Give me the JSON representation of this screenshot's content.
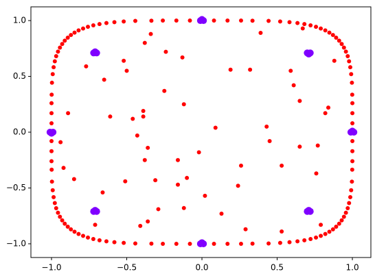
{
  "chart_data": {
    "type": "scatter",
    "xlim": [
      -1.137,
      1.123
    ],
    "ylim": [
      -1.123,
      1.123
    ],
    "xticks": [
      {
        "value": -1,
        "label": "−1.0"
      },
      {
        "value": -0.5,
        "label": "−0.5"
      },
      {
        "value": 0,
        "label": "0.0"
      },
      0.5,
      {
        "value": 1,
        "label": "1.0"
      }
    ],
    "yticks": [
      {
        "value": -1,
        "label": "−1.0"
      },
      {
        "value": -0.5,
        "label": "−0.5"
      },
      {
        "value": 0,
        "label": "0.0"
      },
      0.5,
      {
        "value": 1,
        "label": "1.0"
      }
    ],
    "grid": false,
    "series": [
      {
        "color": "#ff0000",
        "x": [
          1,
          1,
          1,
          1,
          0.999,
          0.997,
          0.992,
          0.986,
          0.978,
          0.969,
          0.957,
          0.944,
          0.929,
          0.912,
          0.892,
          0.871,
          0.847,
          0.82,
          0.79,
          0.758,
          0.722,
          0.681,
          0.635,
          0.582,
          0.52,
          0.443,
          0.336,
          0.26,
          0.17,
          0.08,
          0,
          -0.08,
          -0.17,
          -0.26,
          -0.336,
          -0.443,
          -0.52,
          -0.582,
          -0.635,
          -0.681,
          -0.722,
          -0.758,
          -0.79,
          -0.82,
          -0.847,
          -0.871,
          -0.892,
          -0.912,
          -0.929,
          -0.944,
          -0.957,
          -0.969,
          -0.978,
          -0.986,
          -0.992,
          -0.997,
          -0.999,
          -1,
          -1,
          -1,
          -1,
          -1,
          -1,
          -1,
          -0.999,
          -0.997,
          -0.992,
          -0.986,
          -0.978,
          -0.969,
          -0.957,
          -0.944,
          -0.929,
          -0.912,
          -0.892,
          -0.871,
          -0.847,
          -0.82,
          -0.79,
          -0.758,
          -0.722,
          -0.681,
          -0.635,
          -0.582,
          -0.52,
          -0.443,
          -0.336,
          -0.26,
          -0.17,
          -0.08,
          0,
          0.08,
          0.17,
          0.26,
          0.336,
          0.443,
          0.52,
          0.582,
          0.635,
          0.681,
          0.722,
          0.758,
          0.79,
          0.82,
          0.847,
          0.871,
          0.892,
          0.912,
          0.929,
          0.944,
          0.957,
          0.969,
          0.978,
          0.986,
          0.992,
          0.997,
          0.999,
          1,
          1,
          1
        ],
        "y": [
          0,
          0.08,
          0.17,
          0.26,
          0.336,
          0.443,
          0.52,
          0.582,
          0.635,
          0.681,
          0.722,
          0.758,
          0.79,
          0.82,
          0.847,
          0.871,
          0.892,
          0.912,
          0.929,
          0.944,
          0.957,
          0.969,
          0.978,
          0.986,
          0.992,
          0.997,
          0.999,
          1,
          1,
          1,
          1,
          1,
          1,
          1,
          0.999,
          0.997,
          0.992,
          0.986,
          0.978,
          0.969,
          0.957,
          0.944,
          0.929,
          0.912,
          0.892,
          0.871,
          0.847,
          0.82,
          0.79,
          0.758,
          0.722,
          0.681,
          0.635,
          0.582,
          0.52,
          0.443,
          0.336,
          0.26,
          0.17,
          0.08,
          0,
          -0.08,
          -0.17,
          -0.26,
          -0.336,
          -0.443,
          -0.52,
          -0.582,
          -0.635,
          -0.681,
          -0.722,
          -0.758,
          -0.79,
          -0.82,
          -0.847,
          -0.871,
          -0.892,
          -0.912,
          -0.929,
          -0.944,
          -0.957,
          -0.969,
          -0.978,
          -0.986,
          -0.992,
          -0.997,
          -0.999,
          -1,
          -1,
          -1,
          -1,
          -1,
          -1,
          -1,
          -0.999,
          -0.997,
          -0.992,
          -0.986,
          -0.978,
          -0.969,
          -0.957,
          -0.944,
          -0.929,
          -0.912,
          -0.892,
          -0.871,
          -0.847,
          -0.82,
          -0.79,
          -0.758,
          -0.722,
          -0.681,
          -0.635,
          -0.582,
          -0.52,
          -0.443,
          -0.336,
          -0.26,
          -0.17,
          -0.08
        ]
      },
      {
        "color": "#ff0000",
        "x": [
          -0.38,
          -0.13,
          0.09,
          0.43,
          0.45,
          -0.25,
          -0.12,
          -0.39,
          -0.39,
          -0.46,
          -0.61,
          -0.77,
          -0.65,
          -0.52,
          -0.5,
          -0.24,
          -0.34,
          -0.02,
          -0.16,
          -0.36,
          -0.43,
          -0.38,
          -0.31,
          -0.51,
          -0.66,
          -0.85,
          -0.29,
          -0.36,
          -0.41,
          -0.12,
          0.02,
          0.13,
          0.24,
          0.26,
          0.53,
          0.65,
          0.76,
          0.77,
          0.82,
          0.84,
          0.65,
          0.59,
          0.61,
          0.32,
          0.19,
          0.39,
          0.67,
          0.88,
          -0.89,
          -0.94,
          0.29,
          0.53,
          0.79,
          -0.71,
          -0.92,
          -0.16,
          -0.1
        ],
        "y": [
          0.8,
          0.67,
          0.04,
          0.05,
          -0.08,
          0.37,
          0.25,
          0.19,
          0.14,
          0.12,
          0.14,
          0.59,
          0.47,
          0.64,
          0.55,
          0.72,
          0.88,
          -0.18,
          -0.25,
          -0.14,
          -0.03,
          -0.25,
          -0.43,
          -0.44,
          -0.54,
          -0.42,
          -0.69,
          -0.8,
          -0.84,
          -0.68,
          -0.57,
          -0.73,
          -0.48,
          -0.3,
          -0.3,
          -0.13,
          -0.37,
          -0.12,
          0.17,
          0.22,
          0.28,
          0.55,
          0.42,
          0.56,
          0.56,
          0.89,
          0.93,
          0.64,
          0.17,
          -0.09,
          -0.87,
          -0.89,
          -0.83,
          -0.83,
          -0.32,
          -0.47,
          -0.41
        ]
      },
      {
        "color": "#7f00ff",
        "x": [
          -0.01,
          0.01,
          0,
          0.7,
          0.72,
          0.71,
          0.99,
          1.01,
          1,
          0.7,
          0.72,
          0.71,
          -0.01,
          0.01,
          0,
          -0.72,
          -0.7,
          -0.71,
          -1.01,
          -0.99,
          -1,
          -0.72,
          -0.7,
          -0.71
        ],
        "y": [
          1,
          1,
          1.01,
          0.71,
          0.71,
          0.7,
          0,
          0,
          0.01,
          -0.71,
          -0.71,
          -0.7,
          -1,
          -1,
          -0.99,
          -0.71,
          -0.71,
          -0.7,
          0,
          0,
          -0.01,
          0.71,
          0.71,
          0.72
        ]
      }
    ]
  }
}
